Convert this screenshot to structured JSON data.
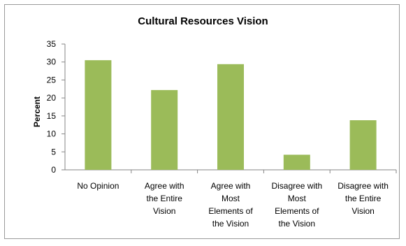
{
  "chart_data": {
    "type": "bar",
    "title": "Cultural Resources Vision",
    "ylabel": "Percent",
    "xlabel": "",
    "ylim": [
      0,
      35
    ],
    "yticks": [
      "0",
      "5",
      "10",
      "15",
      "20",
      "25",
      "30",
      "35"
    ],
    "categories": [
      [
        "No Opinion"
      ],
      [
        "Agree with",
        "the Entire",
        "Vision"
      ],
      [
        "Agree with",
        "Most",
        "Elements of",
        "the Vision"
      ],
      [
        "Disagree with",
        "Most",
        "Elements of",
        "the Vision"
      ],
      [
        "Disagree with",
        "the Entire",
        "Vision"
      ]
    ],
    "values": [
      30.5,
      22.2,
      29.4,
      4.2,
      13.8
    ],
    "bar_color": "#9bbb59",
    "grid": false,
    "legend": "none"
  }
}
